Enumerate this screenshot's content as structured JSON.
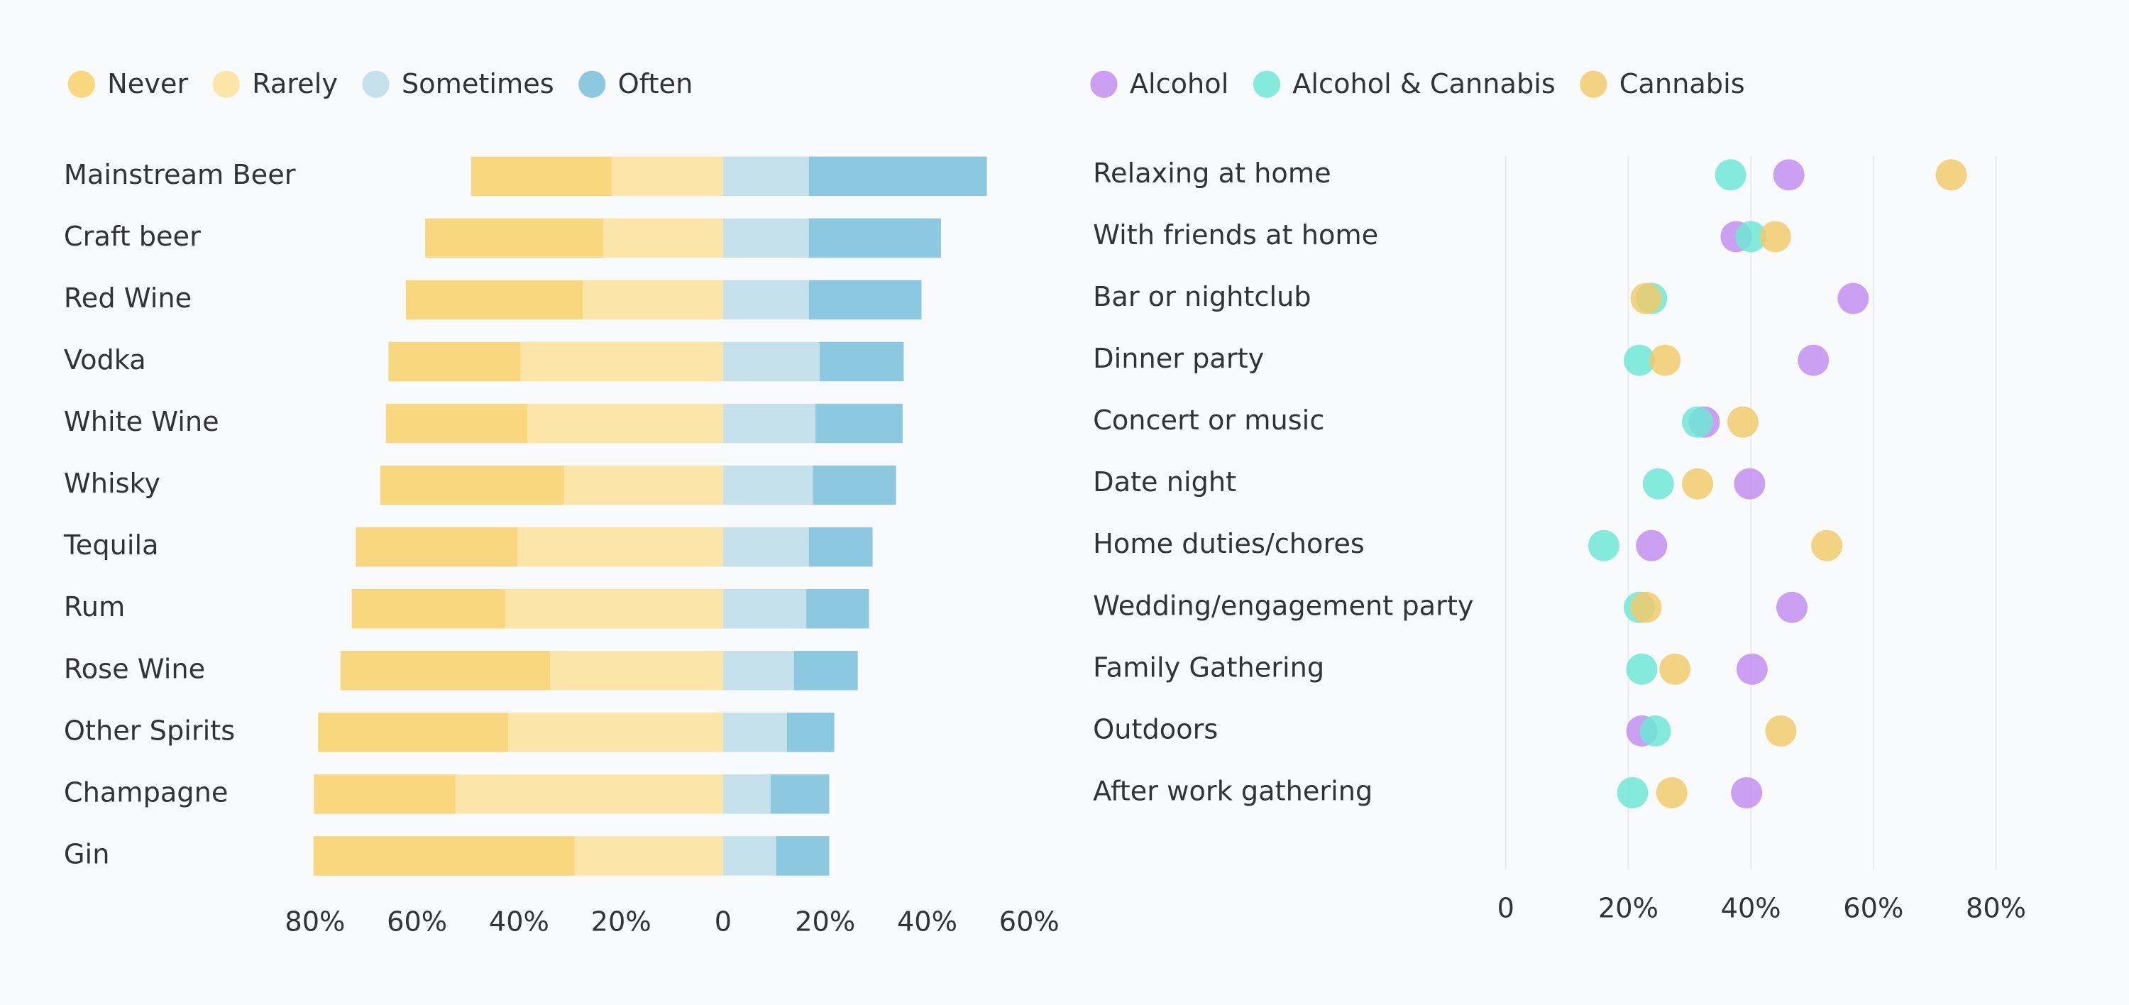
{
  "chart_data": [
    {
      "type": "bar",
      "categories": [
        "Mainstream Beer",
        "Craft beer",
        "Red Wine",
        "Vodka",
        "White Wine",
        "Whisky",
        "Tequila",
        "Rum",
        "Rose Wine",
        "Other Spirits",
        "Champagne",
        "Gin"
      ],
      "series": [
        {
          "name": "Never",
          "color": "#f9d77e",
          "values": [
            -27.5,
            -34.9,
            -34.7,
            -25.9,
            -27.7,
            -36,
            -31.7,
            -30.1,
            -41.1,
            -37.3,
            -27.7,
            -51.2
          ]
        },
        {
          "name": "Rarely",
          "color": "#fce5a8",
          "values": [
            -21.9,
            -23.5,
            -27.5,
            -39.7,
            -38.4,
            -31.2,
            -40.3,
            -42.7,
            -33.9,
            -42.1,
            -52.5,
            -29.1
          ]
        },
        {
          "name": "Sometimes",
          "color": "#c5e2ec",
          "values": [
            16.8,
            16.8,
            16.8,
            18.9,
            18.1,
            17.6,
            16.8,
            16.3,
            13.9,
            12.5,
            9.3,
            10.4
          ]
        },
        {
          "name": "Often",
          "color": "#8cc9e1",
          "values": [
            34.9,
            25.9,
            22.1,
            16.5,
            17.1,
            16.3,
            12.5,
            12.3,
            12.5,
            9.3,
            11.5,
            10.4
          ]
        }
      ],
      "xlim": [
        -80,
        60
      ],
      "xticks": [
        {
          "value": -80,
          "label": "80%"
        },
        {
          "value": -60,
          "label": "60%"
        },
        {
          "value": -40,
          "label": "40%"
        },
        {
          "value": -20,
          "label": "20%"
        },
        0,
        {
          "value": 20,
          "label": "20%"
        },
        {
          "value": 40,
          "label": "40%"
        },
        {
          "value": 60,
          "label": "60%"
        }
      ],
      "grid": false
    },
    {
      "type": "dot",
      "categories": [
        "Relaxing at home",
        "With friends at home",
        "Bar or nightclub",
        "Dinner party",
        "Concert or music",
        "Date night",
        "Home duties/chores",
        "Wedding/engagement party",
        "Family Gathering",
        "Outdoors",
        "After work gathering"
      ],
      "series": [
        {
          "name": "Alcohol",
          "color": "#c38ef0",
          "values": [
            46.2,
            37.6,
            56.7,
            50.2,
            32.4,
            39.8,
            23.8,
            46.7,
            40.2,
            22.2,
            39.3
          ]
        },
        {
          "name": "Alcohol & Cannabis",
          "color": "#6ee6d6",
          "values": [
            36.7,
            40,
            23.8,
            21.8,
            31.3,
            24.9,
            16,
            21.8,
            22.2,
            24.4,
            20.7
          ]
        },
        {
          "name": "Cannabis",
          "color": "#f1cb6c",
          "values": [
            72.7,
            44,
            22.9,
            26,
            38.7,
            31.3,
            52.4,
            22.9,
            27.6,
            44.9,
            27.1
          ]
        }
      ],
      "xlim": [
        0,
        80
      ],
      "xticks": [
        0,
        {
          "value": 20,
          "label": "20%"
        },
        {
          "value": 40,
          "label": "40%"
        },
        {
          "value": 60,
          "label": "60%"
        },
        {
          "value": 80,
          "label": "80%"
        }
      ],
      "grid": true
    }
  ]
}
